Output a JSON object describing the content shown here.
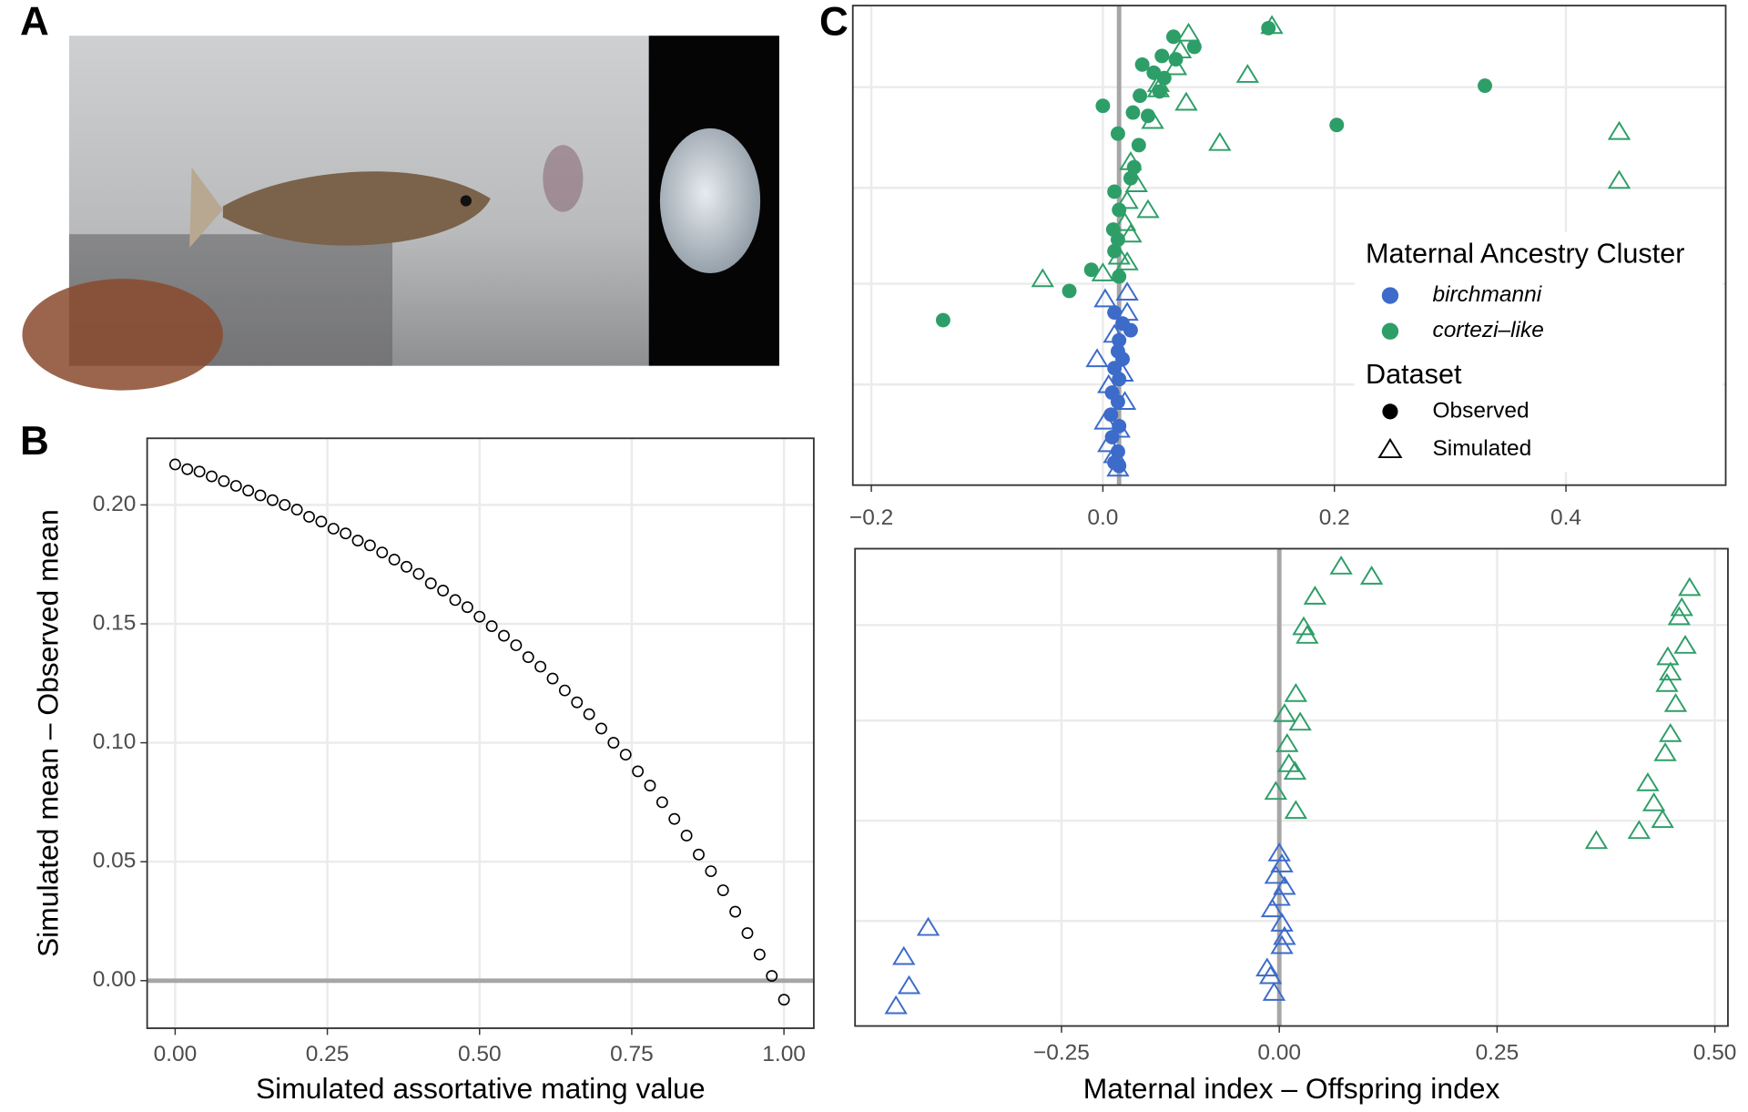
{
  "panel_labels": [
    "A",
    "B",
    "C"
  ],
  "legend": {
    "clusters_title": "Maternal Ancestry Cluster",
    "clusters": [
      {
        "name": "birchmanni",
        "color": "#3c6bc9"
      },
      {
        "name": "cortezi–like",
        "color": "#2e9e68"
      }
    ],
    "datasets_title": "Dataset",
    "datasets": [
      {
        "name": "Observed",
        "marker": "circle"
      },
      {
        "name": "Simulated",
        "marker": "triangle"
      }
    ]
  },
  "chart_data": [
    {
      "type": "scatter",
      "marker": "open-circle",
      "color": "#000000",
      "xlabel": "Simulated assortative mating value",
      "ylabel": "Simulated mean – Observed mean",
      "x": [
        0,
        0.02,
        0.04,
        0.06,
        0.08,
        0.1,
        0.12,
        0.14,
        0.16,
        0.18,
        0.2,
        0.22,
        0.24,
        0.26,
        0.28,
        0.3,
        0.32,
        0.34,
        0.36,
        0.38,
        0.4,
        0.42,
        0.44,
        0.46,
        0.48,
        0.5,
        0.52,
        0.54,
        0.56,
        0.58,
        0.6,
        0.62,
        0.64,
        0.66,
        0.68,
        0.7,
        0.72,
        0.74,
        0.76,
        0.78,
        0.8,
        0.82,
        0.84,
        0.86,
        0.88,
        0.9,
        0.92,
        0.94,
        0.96,
        0.98,
        1
      ],
      "y": [
        0.217,
        0.215,
        0.214,
        0.212,
        0.21,
        0.208,
        0.206,
        0.204,
        0.202,
        0.2,
        0.198,
        0.195,
        0.193,
        0.19,
        0.188,
        0.185,
        0.183,
        0.18,
        0.177,
        0.174,
        0.171,
        0.167,
        0.164,
        0.16,
        0.157,
        0.153,
        0.149,
        0.145,
        0.141,
        0.136,
        0.132,
        0.127,
        0.122,
        0.117,
        0.112,
        0.106,
        0.1,
        0.095,
        0.088,
        0.082,
        0.075,
        0.068,
        0.061,
        0.053,
        0.046,
        0.038,
        0.029,
        0.02,
        0.011,
        0.002,
        -0.008
      ],
      "xlim": [
        -0.046,
        1.049
      ],
      "ylim": [
        -0.02,
        0.228
      ],
      "xticks": [
        {
          "value": 0,
          "label": "0.00"
        },
        {
          "value": 0.25,
          "label": "0.25"
        },
        {
          "value": 0.5,
          "label": "0.50"
        },
        {
          "value": 0.75,
          "label": "0.75"
        },
        {
          "value": 1,
          "label": "1.00"
        }
      ],
      "yticks": [
        {
          "value": 0,
          "label": "0.00"
        },
        {
          "value": 0.05,
          "label": "0.05"
        },
        {
          "value": 0.1,
          "label": "0.10"
        },
        {
          "value": 0.15,
          "label": "0.15"
        },
        {
          "value": 0.2,
          "label": "0.20"
        }
      ],
      "hline": 0,
      "grid": true
    },
    {
      "type": "scatter",
      "ytick_labels": false,
      "grid": true,
      "vline": 0.014,
      "xlim": [
        -0.216,
        0.538
      ],
      "ylim": [
        0,
        100
      ],
      "xticks": [
        {
          "value": -0.2,
          "label": "−0.2"
        },
        {
          "value": 0,
          "label": "0.0"
        },
        {
          "value": 0.2,
          "label": "0.2"
        },
        {
          "value": 0.4,
          "label": "0.4"
        }
      ],
      "yticks": [
        21,
        42,
        62,
        83
      ],
      "series": [
        {
          "cluster": "cortezi–like",
          "dataset": "Observed",
          "x": [
            0.061,
            0.079,
            0.051,
            0.034,
            0.063,
            0.044,
            0.032,
            0.049,
            0.026,
            0,
            0.013,
            0.031,
            0.027,
            0.024,
            0.01,
            0.014,
            0.009,
            0.013,
            0.01,
            -0.01,
            0.014,
            -0.029,
            -0.138,
            0.143,
            0.33,
            0.202,
            0.039,
            0.053
          ],
          "y": [
            93.5,
            91.4,
            89.5,
            87.7,
            88.8,
            86,
            81.2,
            82.1,
            77.7,
            79.1,
            73.3,
            70.9,
            66.3,
            64,
            61.2,
            57.4,
            53.3,
            51.2,
            48.8,
            44.9,
            43.5,
            40.5,
            34.4,
            95.3,
            83.3,
            75.1,
            77,
            84.9
          ]
        },
        {
          "cluster": "cortezi–like",
          "dataset": "Simulated",
          "x": [
            0.074,
            0.067,
            0.146,
            0.063,
            0.048,
            0.125,
            0.072,
            0.043,
            0.101,
            0.024,
            0.029,
            0.021,
            0.039,
            0.019,
            0.024,
            0.014,
            0,
            0.021,
            -0.052,
            0.446,
            0.446,
            0.048
          ],
          "y": [
            94.2,
            90.7,
            95.8,
            87.2,
            83.7,
            85.6,
            79.8,
            76,
            71.4,
            67.4,
            62.8,
            59.3,
            57.4,
            54.7,
            52.3,
            47.7,
            44.2,
            46.5,
            43,
            73.7,
            63.5,
            82.6
          ]
        },
        {
          "cluster": "birchmanni",
          "dataset": "Observed",
          "x": [
            0.024,
            0.014,
            0.013,
            0.017,
            0.01,
            0.014,
            0.008,
            0.013,
            0.007,
            0.014,
            0.008,
            0.013,
            0.01,
            0.014,
            0.017,
            0.01
          ],
          "y": [
            32.3,
            30.2,
            27.9,
            26.3,
            24.4,
            22.1,
            19.3,
            17.4,
            14.7,
            12.3,
            10,
            7,
            4.7,
            4,
            33.7,
            36
          ]
        },
        {
          "cluster": "birchmanni",
          "dataset": "Simulated",
          "x": [
            0.002,
            0.021,
            0.021,
            -0.005,
            0.017,
            0.005,
            0.019,
            0.002,
            0.014,
            0.005,
            0.01,
            0.013,
            0.01
          ],
          "y": [
            38.8,
            40.2,
            36,
            26.3,
            23.3,
            20.9,
            17.4,
            13.3,
            11.6,
            8.6,
            6.3,
            3.5,
            31.4
          ]
        }
      ]
    },
    {
      "type": "scatter",
      "ytick_labels": false,
      "grid": true,
      "vline": 0,
      "xlabel": "Maternal index – Offspring index",
      "xlim": [
        -0.487,
        0.515
      ],
      "ylim": [
        0,
        100
      ],
      "xticks": [
        {
          "value": -0.25,
          "label": "−0.25"
        },
        {
          "value": 0,
          "label": "0.00"
        },
        {
          "value": 0.25,
          "label": "0.25"
        },
        {
          "value": 0.5,
          "label": "0.50"
        }
      ],
      "yticks": [
        22,
        43,
        64,
        84
      ],
      "series": [
        {
          "cluster": "cortezi–like",
          "dataset": "Simulated",
          "x": [
            0.071,
            0.106,
            0.041,
            0.028,
            0.032,
            0.019,
            0.006,
            0.024,
            0.009,
            0.011,
            0.018,
            -0.004,
            0.019,
            0.471,
            0.462,
            0.459,
            0.466,
            0.446,
            0.449,
            0.445,
            0.455,
            0.449,
            0.443,
            0.423,
            0.43,
            0.44,
            0.413,
            0.364
          ],
          "y": [
            96.3,
            94.2,
            90,
            83.6,
            81.8,
            69.6,
            65.4,
            63.6,
            59.1,
            54.9,
            53.3,
            49.1,
            45.1,
            91.8,
            87.6,
            85.7,
            79.7,
            77.3,
            74.1,
            71.7,
            67.5,
            61.2,
            57.2,
            50.9,
            46.7,
            43.2,
            40.9,
            38.8
          ]
        },
        {
          "cluster": "birchmanni",
          "dataset": "Simulated",
          "x": [
            0,
            0.003,
            -0.004,
            0.006,
            0,
            -0.008,
            0.003,
            0.006,
            0.003,
            -0.014,
            -0.01,
            -0.006,
            -0.403,
            -0.431,
            -0.425,
            -0.44
          ],
          "y": [
            36.2,
            33.9,
            31.5,
            29.2,
            26.9,
            24.5,
            21.5,
            18.7,
            16.8,
            12.1,
            10.5,
            7,
            20.6,
            14.5,
            8.4,
            4.2
          ]
        }
      ]
    }
  ]
}
